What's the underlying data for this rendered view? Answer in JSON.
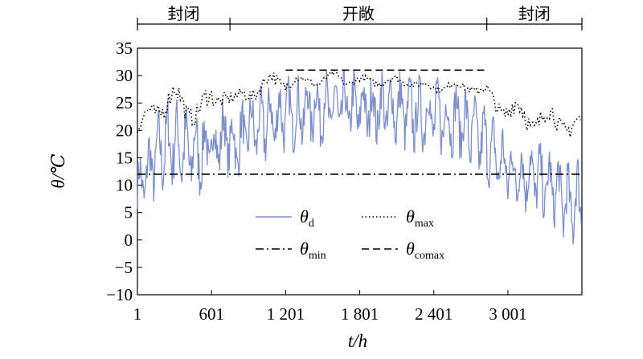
{
  "chart_data": {
    "type": "line",
    "xlabel": "t/h",
    "ylabel": "θ/℃",
    "xlim": [
      1,
      3600
    ],
    "ylim": [
      -10,
      35
    ],
    "y_ticks": [
      35,
      30,
      25,
      20,
      15,
      10,
      5,
      0,
      -5,
      -10
    ],
    "x_ticks": [
      1,
      601,
      1201,
      1801,
      2401,
      3001
    ],
    "x_tick_labels": [
      "1",
      "601",
      "1 201",
      "1 801",
      "2 401",
      "3 001"
    ],
    "regions": [
      {
        "label": "封闭",
        "x_start": 1,
        "x_end": 750
      },
      {
        "label": "开敞",
        "x_start": 750,
        "x_end": 2830
      },
      {
        "label": "封闭",
        "x_start": 2830,
        "x_end": 3600
      }
    ],
    "series": [
      {
        "name": "θd",
        "color": "#7b8fcb",
        "style": "solid",
        "x": [
          1,
          100,
          200,
          300,
          400,
          500,
          600,
          700,
          800,
          900,
          1000,
          1100,
          1200,
          1300,
          1400,
          1500,
          1600,
          1700,
          1800,
          1900,
          2000,
          2100,
          2200,
          2300,
          2400,
          2500,
          2600,
          2700,
          2800,
          2900,
          3000,
          3100,
          3200,
          3300,
          3400,
          3500,
          3600
        ],
        "y_mid": [
          9,
          13,
          17,
          18,
          16,
          16,
          17,
          19,
          17,
          20,
          21,
          22,
          23,
          23,
          24,
          24,
          24,
          24,
          24,
          24,
          24,
          24,
          23,
          23,
          23,
          22,
          22,
          20,
          18,
          15,
          13,
          12,
          12,
          10,
          9,
          6,
          8
        ],
        "y_amp": [
          6,
          7,
          8,
          8,
          8,
          8,
          7,
          7,
          7,
          7,
          7,
          7,
          7,
          7,
          7,
          7,
          7,
          7,
          7,
          7,
          7,
          7,
          7,
          7,
          7,
          7,
          7,
          7,
          7,
          7,
          7,
          7,
          7,
          7,
          7,
          8,
          8
        ]
      },
      {
        "name": "θmax",
        "color": "#000000",
        "style": "dotted",
        "x": [
          1,
          100,
          200,
          300,
          400,
          500,
          600,
          700,
          800,
          900,
          1000,
          1100,
          1200,
          1300,
          1400,
          1500,
          1600,
          1700,
          1800,
          1900,
          2000,
          2100,
          2200,
          2300,
          2400,
          2500,
          2600,
          2700,
          2800,
          2900,
          3000,
          3100,
          3200,
          3300,
          3400,
          3500,
          3600
        ],
        "y_mid": [
          20,
          23,
          25,
          26,
          24,
          24,
          25,
          27,
          25,
          27,
          28,
          29,
          29,
          29,
          29,
          29,
          30,
          29,
          29,
          29,
          29,
          29,
          29,
          28,
          28,
          28,
          28,
          28,
          27,
          25,
          24,
          23,
          22,
          22,
          22,
          21,
          20
        ],
        "y_amp": [
          2,
          2,
          3,
          3,
          3,
          3,
          3,
          2,
          2,
          2,
          2,
          2,
          2,
          1,
          1,
          1,
          1,
          1,
          1,
          1,
          1,
          1,
          1,
          1,
          1,
          1,
          1,
          1,
          2,
          2,
          3,
          3,
          3,
          3,
          3,
          3,
          3
        ]
      },
      {
        "name": "θmin",
        "color": "#000000",
        "style": "dashdot",
        "x": [
          1,
          3600
        ],
        "y": [
          12,
          12
        ]
      },
      {
        "name": "θcomax",
        "color": "#000000",
        "style": "dashed",
        "x": [
          1201,
          2830
        ],
        "y": [
          31,
          31
        ]
      }
    ],
    "legend": {
      "placement": "center-bottom",
      "entries": [
        {
          "symbol": "θ",
          "sub": "d",
          "style": "solid",
          "color": "#7b8fcb"
        },
        {
          "symbol": "θ",
          "sub": "max",
          "style": "dotted",
          "color": "#000000"
        },
        {
          "symbol": "θ",
          "sub": "min",
          "style": "dashdot",
          "color": "#000000"
        },
        {
          "symbol": "θ",
          "sub": "comax",
          "style": "dashed",
          "color": "#000000"
        }
      ]
    },
    "grid": false
  }
}
